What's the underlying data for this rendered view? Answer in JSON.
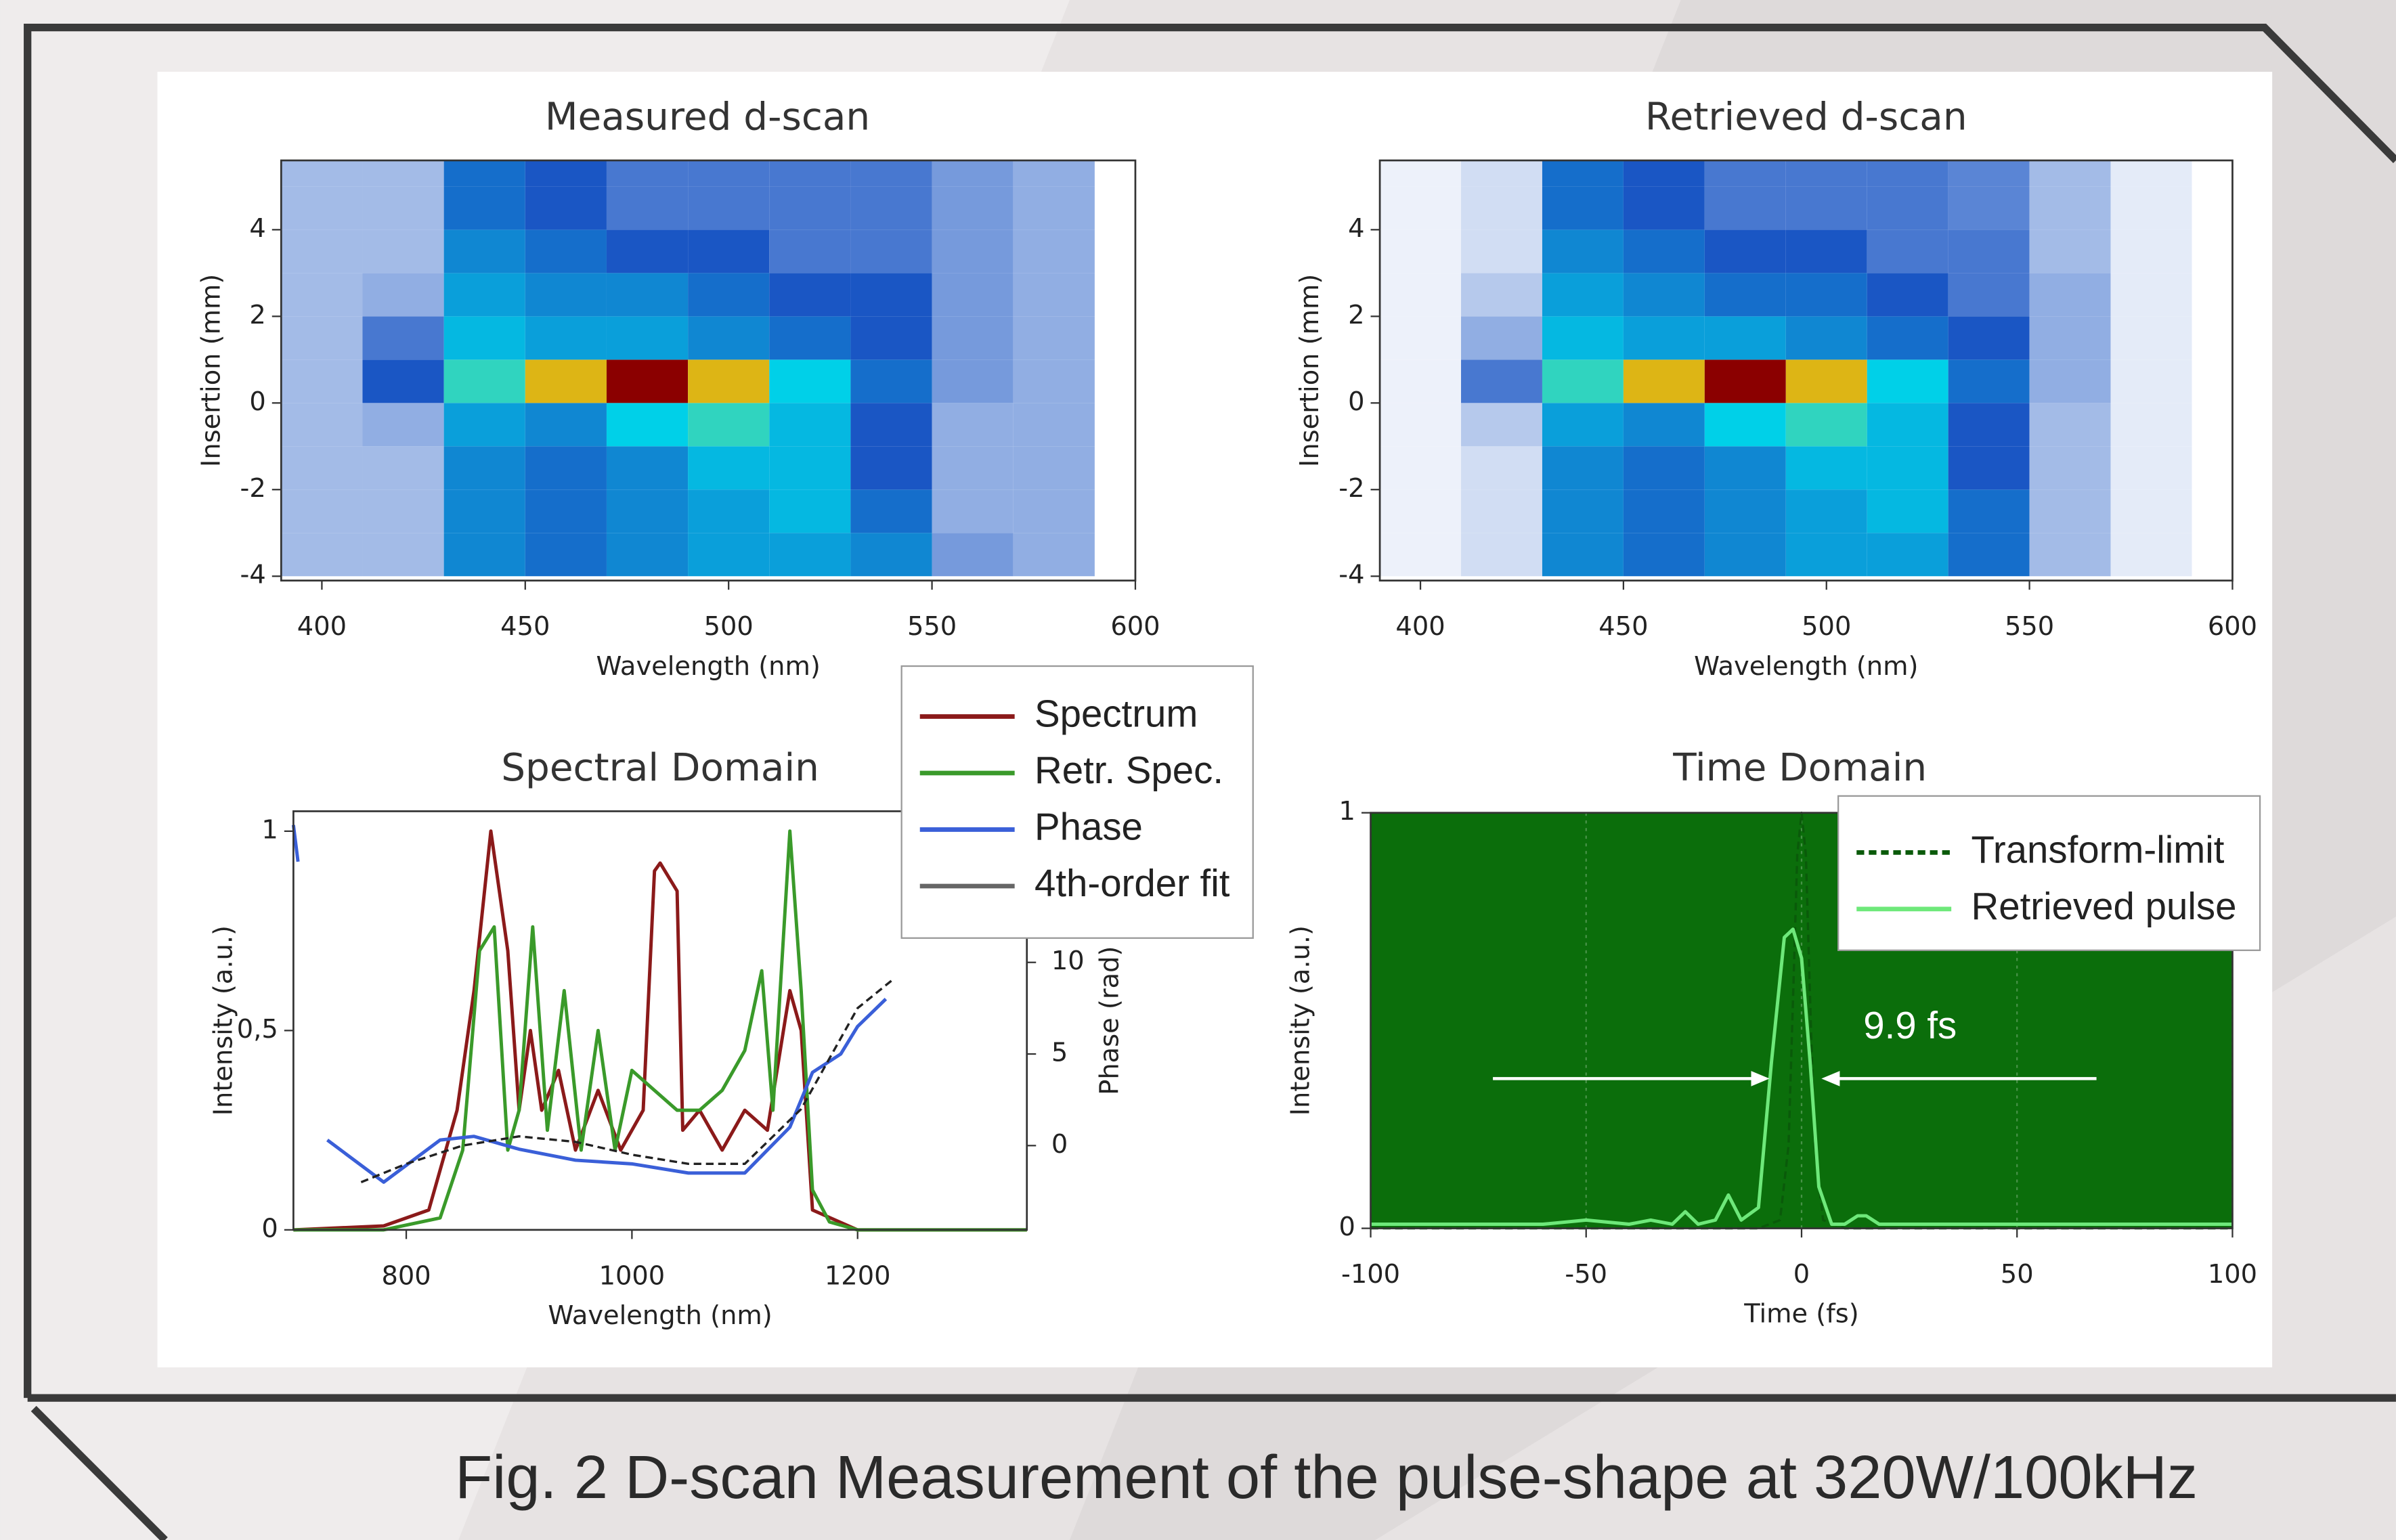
{
  "caption": "Fig. 2 D-scan Measurement of the pulse-shape at 320W/100kHz",
  "chart_data": [
    {
      "type": "heatmap",
      "title": "Measured d-scan",
      "x_label": "Wavelength (nm)",
      "y_label": "Insertion (mm)",
      "xlim": [
        390,
        600
      ],
      "ylim": [
        -4.1,
        5.6
      ],
      "xticks": [
        400,
        450,
        500,
        550,
        600
      ],
      "yticks": [
        -4,
        -2,
        0,
        2,
        4
      ],
      "colorscale": [
        "#ffffff",
        "#1a56c4",
        "#00d0e8",
        "#f2e21a",
        "#8b0000"
      ],
      "x": [
        400,
        420,
        440,
        460,
        480,
        500,
        520,
        540,
        560,
        580
      ],
      "y": [
        -3.5,
        -2.5,
        -1.5,
        -0.5,
        0.5,
        1.5,
        2.5,
        3.5,
        4.5,
        5.5
      ],
      "z": [
        [
          0.1,
          0.1,
          0.35,
          0.3,
          0.35,
          0.4,
          0.4,
          0.35,
          0.15,
          0.12
        ],
        [
          0.1,
          0.1,
          0.35,
          0.3,
          0.35,
          0.4,
          0.45,
          0.3,
          0.12,
          0.12
        ],
        [
          0.1,
          0.1,
          0.35,
          0.3,
          0.35,
          0.45,
          0.45,
          0.25,
          0.12,
          0.12
        ],
        [
          0.1,
          0.12,
          0.4,
          0.35,
          0.5,
          0.55,
          0.45,
          0.25,
          0.12,
          0.12
        ],
        [
          0.1,
          0.25,
          0.55,
          0.8,
          1.0,
          0.8,
          0.5,
          0.3,
          0.15,
          0.12
        ],
        [
          0.1,
          0.2,
          0.45,
          0.4,
          0.4,
          0.35,
          0.3,
          0.25,
          0.15,
          0.12
        ],
        [
          0.1,
          0.12,
          0.4,
          0.35,
          0.35,
          0.3,
          0.25,
          0.25,
          0.15,
          0.12
        ],
        [
          0.1,
          0.1,
          0.35,
          0.3,
          0.25,
          0.25,
          0.2,
          0.2,
          0.15,
          0.12
        ],
        [
          0.1,
          0.1,
          0.3,
          0.25,
          0.2,
          0.2,
          0.2,
          0.2,
          0.15,
          0.12
        ],
        [
          0.1,
          0.1,
          0.3,
          0.25,
          0.2,
          0.2,
          0.2,
          0.2,
          0.15,
          0.12
        ]
      ]
    },
    {
      "type": "heatmap",
      "title": "Retrieved d-scan",
      "x_label": "Wavelength (nm)",
      "y_label": "Insertion (mm)",
      "xlim": [
        390,
        600
      ],
      "ylim": [
        -4.1,
        5.6
      ],
      "xticks": [
        400,
        450,
        500,
        550,
        600
      ],
      "yticks": [
        -4,
        -2,
        0,
        2,
        4
      ],
      "colorscale": [
        "#ffffff",
        "#1a56c4",
        "#00d0e8",
        "#f2e21a",
        "#8b0000"
      ],
      "x": [
        400,
        420,
        440,
        460,
        480,
        500,
        520,
        540,
        560,
        580
      ],
      "y": [
        -3.5,
        -2.5,
        -1.5,
        -0.5,
        0.5,
        1.5,
        2.5,
        3.5,
        4.5,
        5.5
      ],
      "z": [
        [
          0.02,
          0.05,
          0.35,
          0.3,
          0.35,
          0.4,
          0.4,
          0.3,
          0.1,
          0.03
        ],
        [
          0.02,
          0.05,
          0.35,
          0.3,
          0.35,
          0.4,
          0.45,
          0.3,
          0.1,
          0.03
        ],
        [
          0.02,
          0.05,
          0.35,
          0.3,
          0.35,
          0.45,
          0.45,
          0.25,
          0.1,
          0.03
        ],
        [
          0.02,
          0.08,
          0.4,
          0.35,
          0.5,
          0.55,
          0.45,
          0.25,
          0.1,
          0.03
        ],
        [
          0.02,
          0.2,
          0.55,
          0.8,
          1.0,
          0.8,
          0.5,
          0.3,
          0.12,
          0.03
        ],
        [
          0.02,
          0.12,
          0.45,
          0.4,
          0.4,
          0.35,
          0.3,
          0.25,
          0.12,
          0.03
        ],
        [
          0.02,
          0.08,
          0.4,
          0.35,
          0.3,
          0.3,
          0.25,
          0.2,
          0.12,
          0.03
        ],
        [
          0.02,
          0.05,
          0.35,
          0.3,
          0.25,
          0.25,
          0.2,
          0.2,
          0.1,
          0.03
        ],
        [
          0.02,
          0.05,
          0.3,
          0.25,
          0.2,
          0.2,
          0.2,
          0.18,
          0.1,
          0.03
        ],
        [
          0.02,
          0.05,
          0.3,
          0.25,
          0.2,
          0.2,
          0.2,
          0.18,
          0.1,
          0.03
        ]
      ]
    },
    {
      "type": "line",
      "title": "Spectral Domain",
      "x_label": "Wavelength (nm)",
      "y_label": "Intensity (a.u.)",
      "y2_label": "Phase (rad)",
      "xlim": [
        700,
        1350
      ],
      "ylim": [
        0,
        1.05
      ],
      "y2lim": [
        -4.6,
        18.25
      ],
      "xticks": [
        800,
        1000,
        1200
      ],
      "yticks": [
        0,
        {
          "value": 0.5,
          "label": "0,5"
        },
        1
      ],
      "y2ticks": [
        0,
        5,
        10
      ],
      "legend": true,
      "series": [
        {
          "name": "Spectrum",
          "color": "#8b1a1a",
          "style": "solid",
          "x": [
            700,
            780,
            820,
            845,
            860,
            875,
            890,
            900,
            910,
            920,
            935,
            950,
            970,
            990,
            1010,
            1020,
            1025,
            1040,
            1045,
            1060,
            1080,
            1100,
            1120,
            1140,
            1150,
            1160,
            1200,
            1350
          ],
          "values": [
            0,
            0.01,
            0.05,
            0.3,
            0.6,
            1.0,
            0.7,
            0.3,
            0.5,
            0.3,
            0.4,
            0.2,
            0.35,
            0.2,
            0.3,
            0.9,
            0.92,
            0.85,
            0.25,
            0.3,
            0.2,
            0.3,
            0.25,
            0.6,
            0.5,
            0.05,
            0,
            0
          ]
        },
        {
          "name": "Retr. Spec.",
          "color": "#3a9a2a",
          "style": "solid",
          "x": [
            700,
            780,
            830,
            850,
            865,
            878,
            890,
            900,
            912,
            925,
            940,
            955,
            970,
            985,
            1000,
            1020,
            1040,
            1060,
            1080,
            1100,
            1115,
            1125,
            1140,
            1150,
            1160,
            1175,
            1200,
            1350
          ],
          "values": [
            0,
            0,
            0.03,
            0.2,
            0.7,
            0.76,
            0.2,
            0.3,
            0.76,
            0.25,
            0.6,
            0.2,
            0.5,
            0.2,
            0.4,
            0.35,
            0.3,
            0.3,
            0.35,
            0.45,
            0.65,
            0.3,
            1.0,
            0.6,
            0.1,
            0.02,
            0,
            0
          ]
        },
        {
          "name": "Phase",
          "color": "#3a5fd8",
          "style": "solid",
          "axis": "y2",
          "x": [
            700,
            704,
            715,
            730,
            780,
            830,
            860,
            900,
            950,
            1000,
            1050,
            1100,
            1140,
            1160,
            1185,
            1200,
            1225
          ],
          "values": [
            17.5,
            15.5,
            null,
            0.3,
            -2,
            0.3,
            0.5,
            -0.2,
            -0.8,
            -1,
            -1.5,
            -1.5,
            1,
            4,
            5,
            6.5,
            8
          ]
        },
        {
          "name": "4th-order fit",
          "color": "#666666",
          "line_color": "#222222",
          "style": "dashed",
          "axis": "y2",
          "x": [
            760,
            800,
            850,
            900,
            950,
            1000,
            1050,
            1100,
            1150,
            1200,
            1230
          ],
          "values": [
            -2,
            -1,
            0,
            0.5,
            0.2,
            -0.5,
            -1,
            -1,
            2,
            7.5,
            9
          ]
        }
      ]
    },
    {
      "type": "line",
      "title": "Time Domain",
      "x_label": "Time (fs)",
      "y_label": "Intensity (a.u.)",
      "xlim": [
        -100,
        100
      ],
      "ylim": [
        0,
        1
      ],
      "xticks": [
        -100,
        -50,
        0,
        50,
        100
      ],
      "yticks": [
        0,
        1
      ],
      "grid": true,
      "plot_bg": "#0b6e0b",
      "legend": true,
      "annotations": [
        {
          "text": "9.9 fs"
        }
      ],
      "series": [
        {
          "name": "Transform-limit",
          "color": "#0a5a0a",
          "style": "dashed",
          "x": [
            -100,
            -10,
            -5,
            -3,
            -2,
            -1,
            0,
            1,
            2,
            3,
            5,
            10,
            100
          ],
          "values": [
            0,
            0,
            0.02,
            0.2,
            0.55,
            0.9,
            1,
            0.9,
            0.55,
            0.2,
            0.02,
            0,
            0
          ]
        },
        {
          "name": "Retrieved pulse",
          "color": "#6ee87a",
          "style": "solid",
          "x": [
            -100,
            -60,
            -50,
            -40,
            -35,
            -30,
            -27,
            -24,
            -20,
            -17,
            -14,
            -10,
            -7,
            -4,
            -2,
            0,
            2,
            4,
            7,
            10,
            13,
            15,
            18,
            22,
            30,
            50,
            100
          ],
          "values": [
            0.01,
            0.01,
            0.02,
            0.01,
            0.02,
            0.01,
            0.04,
            0.01,
            0.02,
            0.08,
            0.02,
            0.05,
            0.4,
            0.7,
            0.72,
            0.65,
            0.4,
            0.1,
            0.01,
            0.01,
            0.03,
            0.03,
            0.01,
            0.01,
            0.01,
            0.01,
            0.01
          ]
        }
      ]
    }
  ]
}
